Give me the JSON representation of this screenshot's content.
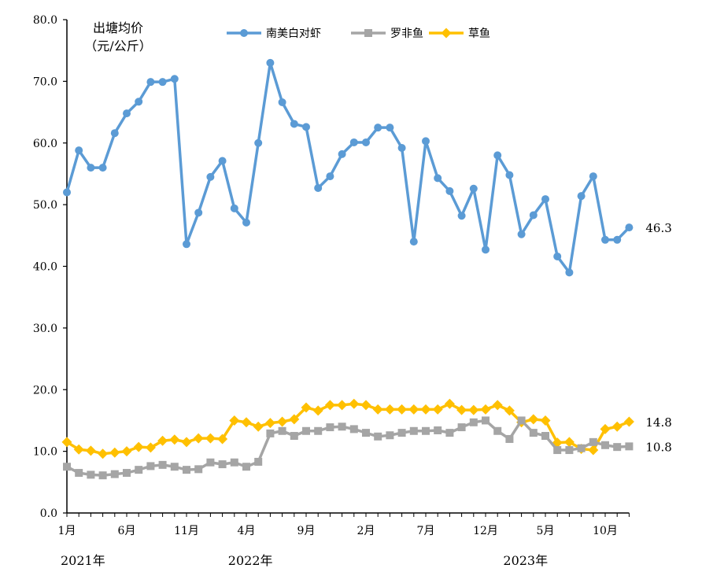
{
  "chart_data": {
    "type": "line",
    "ylabel_lines": [
      "出塘均价",
      "（元/公斤）"
    ],
    "ylim": [
      0,
      80
    ],
    "yticks": [
      "0.0",
      "10.0",
      "20.0",
      "30.0",
      "40.0",
      "50.0",
      "60.0",
      "70.0",
      "80.0"
    ],
    "grid": false,
    "legend_position": "top",
    "x_tick_labels": [
      {
        "index": 0,
        "label": "1月"
      },
      {
        "index": 5,
        "label": "6月"
      },
      {
        "index": 10,
        "label": "11月"
      },
      {
        "index": 15,
        "label": "4月"
      },
      {
        "index": 20,
        "label": "9月"
      },
      {
        "index": 25,
        "label": "2月"
      },
      {
        "index": 30,
        "label": "7月"
      },
      {
        "index": 35,
        "label": "12月"
      },
      {
        "index": 40,
        "label": "5月"
      },
      {
        "index": 45,
        "label": "10月"
      }
    ],
    "year_labels": [
      {
        "index": 0,
        "label": "2021年"
      },
      {
        "index": 14,
        "label": "2022年"
      },
      {
        "index": 37,
        "label": "2023年"
      }
    ],
    "series": [
      {
        "name": "南美白对虾",
        "color": "#5B9BD5",
        "marker": "circle",
        "end_label": "46.3",
        "values": [
          52.0,
          58.8,
          56.0,
          56.0,
          61.6,
          64.8,
          66.7,
          69.9,
          69.9,
          70.4,
          43.6,
          48.7,
          54.5,
          57.1,
          49.4,
          47.1,
          60.0,
          73.0,
          66.6,
          63.1,
          62.6,
          52.7,
          54.6,
          58.2,
          60.1,
          60.1,
          62.5,
          62.5,
          59.2,
          44.0,
          60.3,
          54.3,
          52.2,
          48.2,
          52.6,
          42.7,
          58.0,
          54.8,
          45.2,
          48.3,
          50.9,
          41.6,
          39.0,
          51.4,
          54.6,
          44.3,
          44.3,
          46.3
        ]
      },
      {
        "name": "罗非鱼",
        "color": "#A5A5A5",
        "marker": "square",
        "end_label": "10.8",
        "values": [
          7.5,
          6.5,
          6.2,
          6.1,
          6.3,
          6.5,
          7.0,
          7.6,
          7.8,
          7.5,
          7.0,
          7.1,
          8.2,
          7.9,
          8.2,
          7.5,
          8.3,
          12.9,
          13.3,
          12.5,
          13.3,
          13.3,
          13.9,
          14.0,
          13.6,
          13.0,
          12.4,
          12.6,
          13.0,
          13.3,
          13.3,
          13.4,
          13.0,
          13.9,
          14.7,
          15.0,
          13.3,
          12.0,
          15.0,
          13.0,
          12.5,
          10.2,
          10.2,
          10.5,
          11.5,
          11.0,
          10.7,
          10.8
        ]
      },
      {
        "name": "草鱼",
        "color": "#FFC000",
        "marker": "diamond",
        "end_label": "14.8",
        "values": [
          11.5,
          10.3,
          10.1,
          9.6,
          9.8,
          10.0,
          10.7,
          10.6,
          11.7,
          11.9,
          11.5,
          12.1,
          12.1,
          12.0,
          15.0,
          14.7,
          14.0,
          14.6,
          14.8,
          15.2,
          17.1,
          16.6,
          17.5,
          17.5,
          17.7,
          17.5,
          16.8,
          16.8,
          16.8,
          16.8,
          16.8,
          16.8,
          17.7,
          16.7,
          16.7,
          16.8,
          17.5,
          16.6,
          14.7,
          15.2,
          15.0,
          11.4,
          11.5,
          10.4,
          10.2,
          13.6,
          14.0,
          14.8
        ]
      }
    ]
  }
}
